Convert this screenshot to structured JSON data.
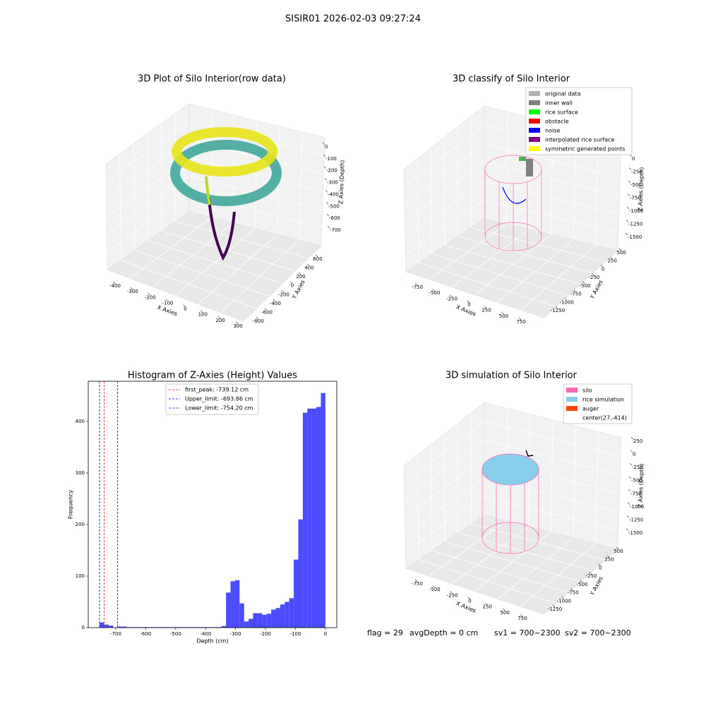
{
  "title": "SISIR01 2026-02-03 09:27:24",
  "chart_data": [
    {
      "type": "scatter3d",
      "title": "3D Plot of Silo Interior(row data)",
      "xlabel": "X Axies",
      "ylabel": "Y Axies",
      "zlabel": "Z Axies (Depth)",
      "xticks": [
        -400,
        -300,
        -200,
        -100,
        0,
        100,
        200,
        300
      ],
      "yticks": [
        -800,
        -600,
        -400,
        -200,
        0,
        200,
        400,
        600
      ],
      "zticks": [
        -700,
        -600,
        -500,
        -400,
        -300,
        -200,
        -100,
        0
      ]
    },
    {
      "type": "scatter3d",
      "title": "3D classify of Silo Interior",
      "xlabel": "X Axies",
      "ylabel": "Y Axies",
      "zlabel": "Z Axies (Depth)",
      "xticks": [
        -750,
        -500,
        -250,
        0,
        250,
        500,
        750
      ],
      "yticks": [
        -1250,
        -1000,
        -750,
        -500,
        -250,
        0,
        250,
        500
      ],
      "zticks": [
        -1500,
        -1250,
        -1000,
        -750,
        -500,
        -250,
        0
      ],
      "legend": [
        {
          "name": "original data",
          "color": "#b3b3b3"
        },
        {
          "name": "inner wall",
          "color": "#808080"
        },
        {
          "name": "rice surface",
          "color": "#00ff00"
        },
        {
          "name": "obstacle",
          "color": "#ff0000"
        },
        {
          "name": "noise",
          "color": "#0000ff"
        },
        {
          "name": "interpolated rice surface",
          "color": "#800080"
        },
        {
          "name": "symmetric generated points",
          "color": "#ffff00"
        }
      ]
    },
    {
      "type": "histogram",
      "title": "Histogram of Z-Axies (Height) Values",
      "xlabel": "Depth (cm)",
      "ylabel": "Frequency",
      "color": "#4b4bff",
      "bins": [
        -754.2,
        -739.1,
        -724.0,
        -708.9,
        -693.9,
        -678.8,
        -663.7,
        -648.6,
        -633.5,
        -618.4,
        -603.4,
        -588.3,
        -573.2,
        -558.1,
        -543.0,
        -527.9,
        -512.9,
        -497.8,
        -482.7,
        -467.6,
        -452.5,
        -437.4,
        -422.4,
        -407.3,
        -392.2,
        -377.1,
        -362.0,
        -346.9,
        -331.9,
        -316.8,
        -301.7,
        -286.6,
        -271.5,
        -256.4,
        -241.4,
        -226.3,
        -211.2,
        -196.1,
        -181.0,
        -165.9,
        -150.8,
        -135.8,
        -120.7,
        -105.6,
        -90.5,
        -75.4,
        -60.3,
        -45.3,
        -30.2,
        -15.1,
        0.0
      ],
      "counts": [
        10,
        6,
        4,
        0,
        2,
        2,
        1,
        1,
        1,
        1,
        1,
        1,
        1,
        1,
        1,
        1,
        1,
        1,
        1,
        1,
        1,
        1,
        1,
        1,
        1,
        1,
        1,
        3,
        68,
        90,
        92,
        47,
        12,
        17,
        28,
        28,
        25,
        27,
        35,
        38,
        45,
        50,
        57,
        132,
        210,
        417,
        425,
        425,
        428,
        455
      ],
      "xlim": [
        -792,
        38
      ],
      "ylim": [
        0,
        478
      ],
      "xticks": [
        -700,
        -600,
        -500,
        -400,
        -300,
        -200,
        -100,
        0
      ],
      "yticks": [
        0,
        100,
        200,
        300,
        400
      ],
      "vlines": [
        {
          "label": "first_peak: -739.12 cm",
          "value": -739.12,
          "color": "#ff0000"
        },
        {
          "label": "Upper_limit: -693.86 cm",
          "value": -693.86,
          "color": "#0000ff"
        },
        {
          "label": "Lower_limit: -754.20 cm",
          "value": -754.2,
          "color": "#0000ff"
        }
      ]
    },
    {
      "type": "scatter3d",
      "title": "3D simulation of Silo Interior",
      "xlabel": "X Axies",
      "ylabel": "Y Axies",
      "zlabel": "Z Axies (Depth)",
      "xticks": [
        -750,
        -500,
        -250,
        0,
        250,
        500,
        750
      ],
      "yticks": [
        -1250,
        -1000,
        -750,
        -500,
        -250,
        0,
        250,
        500
      ],
      "zticks": [
        -1500,
        -1250,
        -1000,
        -750,
        -500,
        -250,
        0,
        250
      ],
      "legend": [
        {
          "name": "silo",
          "color": "#ff69b4"
        },
        {
          "name": "rice simulation",
          "color": "#87ceeb"
        },
        {
          "name": "auger",
          "color": "#ff4500"
        },
        {
          "name": "center(27,-414)"
        }
      ]
    }
  ],
  "annotations": [
    "flag = 29",
    "avgDepth = 0 cm",
    "sv1 = 700~2300",
    "sv2 = 700~2300"
  ]
}
